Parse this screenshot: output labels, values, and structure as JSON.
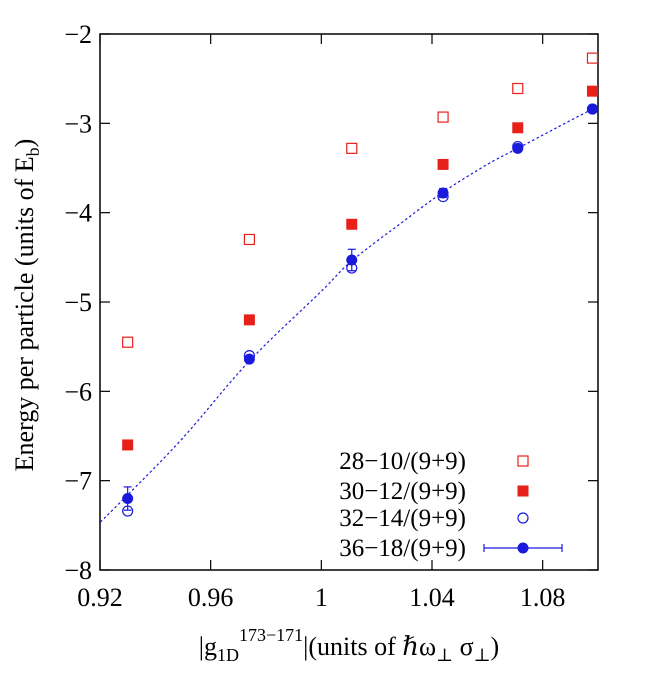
{
  "chart_data": {
    "type": "scatter",
    "xlabel": {
      "pre": "|g",
      "sub1": "1D",
      "sup": "173−171",
      "post": "|(units of ℏω",
      "sub2": "⊥",
      "mid": " σ",
      "sub3": "⊥",
      "end": ")"
    },
    "ylabel": {
      "pre": "Energy per particle (units of E",
      "sub": "b",
      "end": ")"
    },
    "xlim": [
      0.92,
      1.1
    ],
    "ylim": [
      -8,
      -2
    ],
    "xticks": [
      {
        "value": 0.92,
        "label": "0.92"
      },
      {
        "value": 0.96,
        "label": "0.96"
      },
      {
        "value": 1.0,
        "label": "1"
      },
      {
        "value": 1.04,
        "label": "1.04"
      },
      {
        "value": 1.08,
        "label": "1.08"
      }
    ],
    "yticks": [
      {
        "value": -8,
        "label": "−8"
      },
      {
        "value": -7,
        "label": "−7"
      },
      {
        "value": -6,
        "label": "−6"
      },
      {
        "value": -5,
        "label": "−5"
      },
      {
        "value": -4,
        "label": "−4"
      },
      {
        "value": -3,
        "label": "−3"
      },
      {
        "value": -2,
        "label": "−2"
      }
    ],
    "grid": false,
    "legend_position": "bottom-right",
    "series": [
      {
        "name": "28−10/(9+9)",
        "marker": "open-square",
        "color": "#e8201a",
        "x": [
          0.93,
          0.974,
          1.011,
          1.044,
          1.071,
          1.098
        ],
        "y": [
          -5.45,
          -4.3,
          -3.28,
          -2.93,
          -2.61,
          -2.27
        ]
      },
      {
        "name": "30−12/(9+9)",
        "marker": "filled-square",
        "color": "#e8201a",
        "x": [
          0.93,
          0.974,
          1.011,
          1.044,
          1.071,
          1.098
        ],
        "y": [
          -6.6,
          -5.2,
          -4.13,
          -3.46,
          -3.05,
          -2.64
        ]
      },
      {
        "name": "32−14/(9+9)",
        "marker": "open-circle",
        "color": "#1a1adc",
        "x": [
          0.93,
          0.974,
          1.011,
          1.044,
          1.071,
          1.098
        ],
        "y": [
          -7.34,
          -5.6,
          -4.62,
          -3.82,
          -3.26,
          -2.84
        ]
      },
      {
        "name": "36−18/(9+9)",
        "marker": "filled-circle-errorbar",
        "color": "#1a1adc",
        "x": [
          0.93,
          0.974,
          1.011,
          1.044,
          1.071,
          1.098
        ],
        "y": [
          -7.2,
          -5.64,
          -4.53,
          -3.78,
          -3.28,
          -2.84
        ],
        "yerr": [
          0.13,
          0.03,
          0.12,
          0.05,
          0.03,
          0.02
        ]
      }
    ],
    "fit_curve": {
      "style": "dotted",
      "color": "#1a1adc",
      "x": [
        0.915,
        0.93,
        0.95,
        0.974,
        1.0,
        1.011,
        1.03,
        1.044,
        1.06,
        1.071,
        1.085,
        1.098
      ],
      "y": [
        -7.62,
        -7.16,
        -6.52,
        -5.66,
        -4.88,
        -4.54,
        -4.09,
        -3.77,
        -3.46,
        -3.28,
        -3.05,
        -2.84
      ]
    }
  }
}
